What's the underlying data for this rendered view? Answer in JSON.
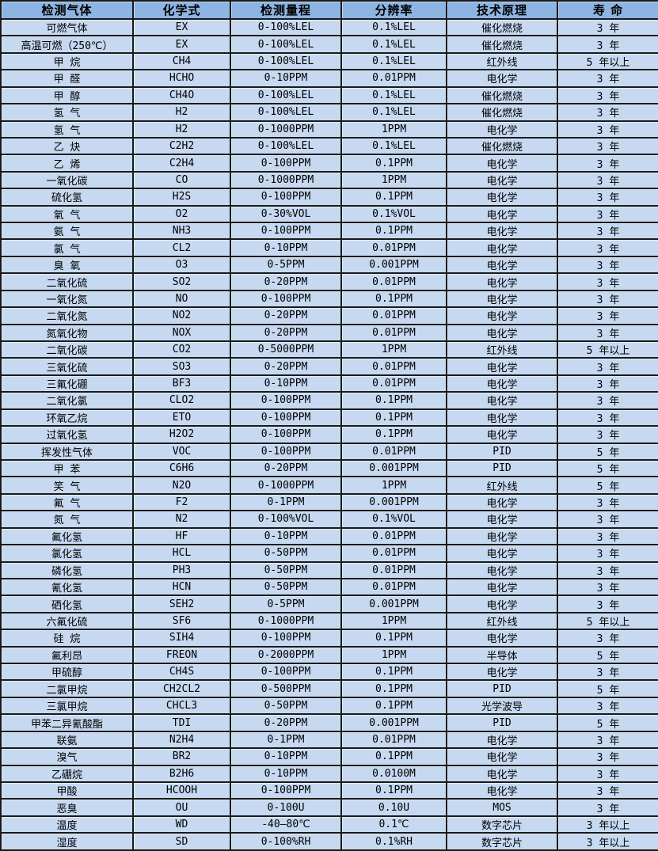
{
  "colors": {
    "header_bg": "#8DB4E2",
    "row_bg": "#C6D9F1",
    "border": "#1A1A1A",
    "text": "#000000"
  },
  "table": {
    "column_keys": [
      "gas",
      "formula",
      "range",
      "resolution",
      "principle",
      "lifespan"
    ],
    "columns": [
      "检测气体",
      "化学式",
      "检测量程",
      "分辨率",
      "技术原理",
      "寿 命"
    ],
    "rows": [
      [
        "可燃气体",
        "EX",
        "0-100%LEL",
        "0.1%LEL",
        "催化燃烧",
        "3 年"
      ],
      [
        "高温可燃（250℃）",
        "EX",
        "0-100%LEL",
        "0.1%LEL",
        "催化燃烧",
        "3 年"
      ],
      [
        "甲 烷",
        "CH4",
        "0-100%LEL",
        "0.1%LEL",
        "红外线",
        "5 年以上"
      ],
      [
        "甲 醛",
        "HCHO",
        "0-10PPM",
        "0.01PPM",
        "电化学",
        "3 年"
      ],
      [
        "甲 醇",
        "CH4O",
        "0-100%LEL",
        "0.1%LEL",
        "催化燃烧",
        "3 年"
      ],
      [
        "氢 气",
        "H2",
        "0-100%LEL",
        "0.1%LEL",
        "催化燃烧",
        "3 年"
      ],
      [
        "氢 气",
        "H2",
        "0-1000PPM",
        "1PPM",
        "电化学",
        "3 年"
      ],
      [
        "乙 炔",
        "C2H2",
        "0-100%LEL",
        "0.1%LEL",
        "催化燃烧",
        "3 年"
      ],
      [
        "乙 烯",
        "C2H4",
        "0-100PPM",
        "0.1PPM",
        "电化学",
        "3 年"
      ],
      [
        "一氧化碳",
        "CO",
        "0-1000PPM",
        "1PPM",
        "电化学",
        "3 年"
      ],
      [
        "硫化氢",
        "H2S",
        "0-100PPM",
        "0.1PPM",
        "电化学",
        "3 年"
      ],
      [
        "氧 气",
        "O2",
        "0-30%VOL",
        "0.1%VOL",
        "电化学",
        "3 年"
      ],
      [
        "氨 气",
        "NH3",
        "0-100PPM",
        "0.1PPM",
        "电化学",
        "3 年"
      ],
      [
        "氯 气",
        "CL2",
        "0-10PPM",
        "0.01PPM",
        "电化学",
        "3 年"
      ],
      [
        "臭 氧",
        "O3",
        "0-5PPM",
        "0.001PPM",
        "电化学",
        "3 年"
      ],
      [
        "二氧化硫",
        "SO2",
        "0-20PPM",
        "0.01PPM",
        "电化学",
        "3 年"
      ],
      [
        "一氧化氮",
        "NO",
        "0-100PPM",
        "0.1PPM",
        "电化学",
        "3 年"
      ],
      [
        "二氧化氮",
        "NO2",
        "0-20PPM",
        "0.01PPM",
        "电化学",
        "3 年"
      ],
      [
        "氮氧化物",
        "NOX",
        "0-20PPM",
        "0.01PPM",
        "电化学",
        "3 年"
      ],
      [
        "二氧化碳",
        "CO2",
        "0-5000PPM",
        "1PPM",
        "红外线",
        "5 年以上"
      ],
      [
        "三氧化硫",
        "SO3",
        "0-20PPM",
        "0.01PPM",
        "电化学",
        "3 年"
      ],
      [
        "三氟化硼",
        "BF3",
        "0-10PPM",
        "0.01PPM",
        "电化学",
        "3 年"
      ],
      [
        "二氧化氯",
        "CLO2",
        "0-100PPM",
        "0.1PPM",
        "电化学",
        "3 年"
      ],
      [
        "环氧乙烷",
        "ETO",
        "0-100PPM",
        "0.1PPM",
        "电化学",
        "3 年"
      ],
      [
        "过氧化氢",
        "H2O2",
        "0-100PPM",
        "0.1PPM",
        "电化学",
        "3 年"
      ],
      [
        "挥发性气体",
        "VOC",
        "0-100PPM",
        "0.01PPM",
        "PID",
        "5 年"
      ],
      [
        "甲 苯",
        "C6H6",
        "0-20PPM",
        "0.001PPM",
        "PID",
        "5 年"
      ],
      [
        "笑 气",
        "N2O",
        "0-1000PPM",
        "1PPM",
        "红外线",
        "5 年"
      ],
      [
        "氟 气",
        "F2",
        "0-1PPM",
        "0.001PPM",
        "电化学",
        "3 年"
      ],
      [
        "氮 气",
        "N2",
        "0-100%VOL",
        "0.1%VOL",
        "电化学",
        "3 年"
      ],
      [
        "氟化氢",
        "HF",
        "0-10PPM",
        "0.01PPM",
        "电化学",
        "3 年"
      ],
      [
        "氯化氢",
        "HCL",
        "0-50PPM",
        "0.01PPM",
        "电化学",
        "3 年"
      ],
      [
        "磷化氢",
        "PH3",
        "0-50PPM",
        "0.01PPM",
        "电化学",
        "3 年"
      ],
      [
        "氰化氢",
        "HCN",
        "0-50PPM",
        "0.01PPM",
        "电化学",
        "3 年"
      ],
      [
        "硒化氢",
        "SEH2",
        "0-5PPM",
        "0.001PPM",
        "电化学",
        "3 年"
      ],
      [
        "六氟化硫",
        "SF6",
        "0-1000PPM",
        "1PPM",
        "红外线",
        "5 年以上"
      ],
      [
        "硅 烷",
        "SIH4",
        "0-100PPM",
        "0.1PPM",
        "电化学",
        "3 年"
      ],
      [
        "氟利昂",
        "FREON",
        "0-2000PPM",
        "1PPM",
        "半导体",
        "5 年"
      ],
      [
        "甲硫醇",
        "CH4S",
        "0-100PPM",
        "0.1PPM",
        "电化学",
        "3 年"
      ],
      [
        "二氯甲烷",
        "CH2CL2",
        "0-500PPM",
        "0.1PPM",
        "PID",
        "5 年"
      ],
      [
        "三氯甲烷",
        "CHCL3",
        "0-50PPM",
        "0.1PPM",
        "光学波导",
        "3 年"
      ],
      [
        "甲苯二异氰酸酯",
        "TDI",
        "0-20PPM",
        "0.001PPM",
        "PID",
        "5 年"
      ],
      [
        "联氨",
        "N2H4",
        "0-1PPM",
        "0.01PPM",
        "电化学",
        "3 年"
      ],
      [
        "溴气",
        "BR2",
        "0-10PPM",
        "0.1PPM",
        "电化学",
        "3 年"
      ],
      [
        "乙硼烷",
        "B2H6",
        "0-10PPM",
        "0.0100M",
        "电化学",
        "3 年"
      ],
      [
        "甲酸",
        "HCOOH",
        "0-100PPM",
        "0.1PPM",
        "电化学",
        "3 年"
      ],
      [
        "恶臭",
        "OU",
        "0-100U",
        "0.10U",
        "MOS",
        "3 年"
      ],
      [
        "温度",
        "WD",
        "-40—80℃",
        "0.1℃",
        "数字芯片",
        "3 年以上"
      ],
      [
        "湿度",
        "SD",
        "0-100%RH",
        "0.1%RH",
        "数字芯片",
        "3 年以上"
      ]
    ]
  }
}
